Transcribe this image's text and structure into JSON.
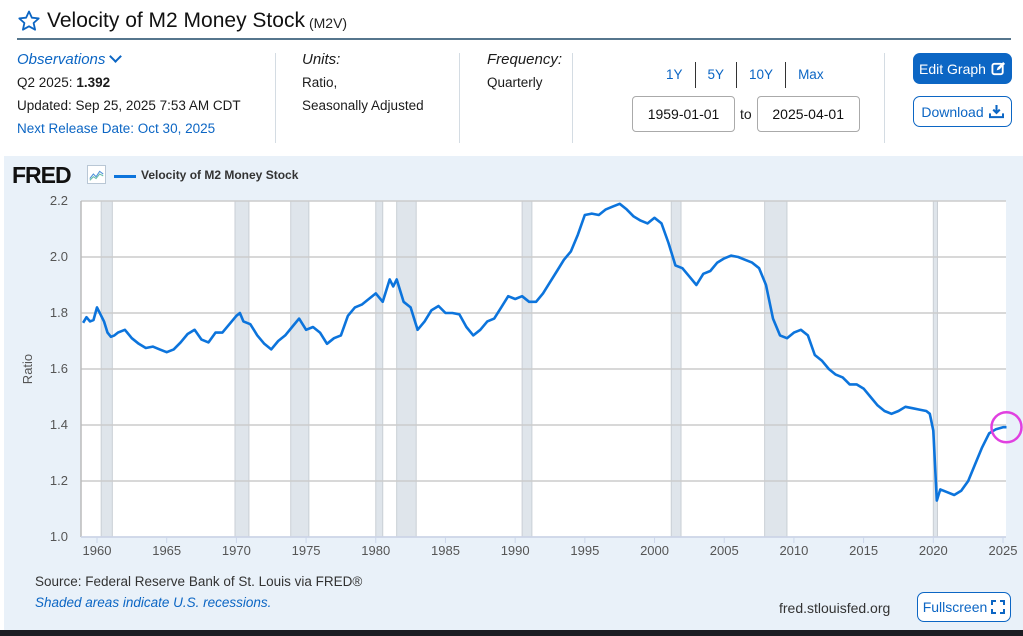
{
  "header": {
    "title": "Velocity of M2 Money Stock",
    "code": "(M2V)"
  },
  "observations": {
    "label": "Observations",
    "latest_period": "Q2 2025:",
    "latest_value": "1.392",
    "updated": "Updated: Sep 25, 2025 7:53 AM CDT",
    "next_release": "Next Release Date: Oct 30, 2025"
  },
  "units": {
    "label": "Units:",
    "line1": "Ratio,",
    "line2": "Seasonally Adjusted"
  },
  "frequency": {
    "label": "Frequency:",
    "value": "Quarterly"
  },
  "range_buttons": [
    "1Y",
    "5Y",
    "10Y",
    "Max"
  ],
  "date_range": {
    "start": "1959-01-01",
    "to": "to",
    "end": "2025-04-01"
  },
  "buttons": {
    "edit_graph": "Edit Graph",
    "download": "Download",
    "fullscreen": "Fullscreen"
  },
  "chart_panel": {
    "logo": "FRED",
    "legend_label": "Velocity of M2 Money Stock",
    "source": "Source: Federal Reserve Bank of St. Louis via FRED®",
    "shaded_note": "Shaded areas indicate U.S. recessions.",
    "site": "fred.stlouisfed.org"
  },
  "colors": {
    "line": "#0c74dc",
    "accent": "#0c66c4",
    "recession": "#dfe5eb",
    "grid": "#cccccc"
  },
  "chart_data": {
    "type": "line",
    "title": "Velocity of M2 Money Stock",
    "xlabel": "",
    "ylabel": "Ratio",
    "ylim": [
      1.0,
      2.2
    ],
    "xlim": [
      1959.0,
      2025.3
    ],
    "yticks": [
      "1.0",
      "1.2",
      "1.4",
      "1.6",
      "1.8",
      "2.0",
      "2.2"
    ],
    "xticks": [
      "1960",
      "1965",
      "1970",
      "1975",
      "1980",
      "1985",
      "1990",
      "1995",
      "2000",
      "2005",
      "2010",
      "2015",
      "2020",
      "2025"
    ],
    "grid": true,
    "legend": "top-left",
    "recessions": [
      [
        1960.3,
        1961.1
      ],
      [
        1969.9,
        1970.9
      ],
      [
        1973.9,
        1975.2
      ],
      [
        1980.0,
        1980.5
      ],
      [
        1981.5,
        1982.9
      ],
      [
        1990.5,
        1991.2
      ],
      [
        2001.2,
        2001.9
      ],
      [
        2007.9,
        2009.5
      ],
      [
        2020.0,
        2020.3
      ]
    ],
    "series": [
      {
        "name": "Velocity of M2 Money Stock",
        "x": [
          1959.0,
          1959.25,
          1959.5,
          1959.75,
          1960.0,
          1960.25,
          1960.5,
          1960.75,
          1961.0,
          1961.25,
          1961.5,
          1962.0,
          1962.5,
          1963.0,
          1963.5,
          1964.0,
          1964.5,
          1965.0,
          1965.5,
          1966.0,
          1966.5,
          1967.0,
          1967.5,
          1968.0,
          1968.5,
          1969.0,
          1969.5,
          1970.0,
          1970.25,
          1970.5,
          1971.0,
          1971.5,
          1972.0,
          1972.5,
          1973.0,
          1973.5,
          1974.0,
          1974.5,
          1975.0,
          1975.5,
          1976.0,
          1976.5,
          1977.0,
          1977.5,
          1978.0,
          1978.5,
          1979.0,
          1979.5,
          1980.0,
          1980.5,
          1981.0,
          1981.25,
          1981.5,
          1982.0,
          1982.5,
          1983.0,
          1983.5,
          1984.0,
          1984.5,
          1985.0,
          1985.5,
          1986.0,
          1986.5,
          1987.0,
          1987.5,
          1988.0,
          1988.5,
          1989.0,
          1989.5,
          1990.0,
          1990.5,
          1991.0,
          1991.5,
          1992.0,
          1992.5,
          1993.0,
          1993.5,
          1994.0,
          1994.5,
          1995.0,
          1995.5,
          1996.0,
          1996.5,
          1997.0,
          1997.5,
          1998.0,
          1998.5,
          1999.0,
          1999.5,
          2000.0,
          2000.5,
          2001.0,
          2001.5,
          2002.0,
          2002.5,
          2003.0,
          2003.5,
          2004.0,
          2004.5,
          2005.0,
          2005.5,
          2006.0,
          2006.5,
          2007.0,
          2007.5,
          2008.0,
          2008.5,
          2009.0,
          2009.5,
          2010.0,
          2010.5,
          2011.0,
          2011.5,
          2012.0,
          2012.5,
          2013.0,
          2013.5,
          2014.0,
          2014.5,
          2015.0,
          2015.5,
          2016.0,
          2016.5,
          2017.0,
          2017.5,
          2018.0,
          2018.5,
          2019.0,
          2019.5,
          2019.75,
          2020.0,
          2020.25,
          2020.5,
          2021.0,
          2021.5,
          2022.0,
          2022.5,
          2023.0,
          2023.5,
          2024.0,
          2024.5,
          2025.0,
          2025.25
        ],
        "values": [
          1.765,
          1.785,
          1.77,
          1.775,
          1.82,
          1.795,
          1.77,
          1.73,
          1.715,
          1.72,
          1.73,
          1.74,
          1.71,
          1.69,
          1.675,
          1.68,
          1.67,
          1.66,
          1.67,
          1.695,
          1.725,
          1.74,
          1.705,
          1.695,
          1.73,
          1.73,
          1.76,
          1.79,
          1.8,
          1.77,
          1.76,
          1.72,
          1.69,
          1.67,
          1.7,
          1.72,
          1.75,
          1.78,
          1.74,
          1.75,
          1.73,
          1.69,
          1.71,
          1.72,
          1.79,
          1.82,
          1.83,
          1.85,
          1.87,
          1.84,
          1.92,
          1.895,
          1.92,
          1.84,
          1.82,
          1.74,
          1.77,
          1.81,
          1.825,
          1.8,
          1.8,
          1.795,
          1.75,
          1.72,
          1.74,
          1.77,
          1.78,
          1.82,
          1.86,
          1.85,
          1.86,
          1.84,
          1.84,
          1.87,
          1.91,
          1.95,
          1.99,
          2.02,
          2.08,
          2.15,
          2.155,
          2.15,
          2.17,
          2.18,
          2.19,
          2.17,
          2.145,
          2.13,
          2.12,
          2.14,
          2.12,
          2.05,
          1.97,
          1.96,
          1.93,
          1.9,
          1.94,
          1.95,
          1.98,
          1.995,
          2.005,
          2.0,
          1.99,
          1.98,
          1.96,
          1.9,
          1.78,
          1.72,
          1.71,
          1.73,
          1.74,
          1.72,
          1.65,
          1.63,
          1.6,
          1.58,
          1.57,
          1.545,
          1.545,
          1.53,
          1.5,
          1.47,
          1.45,
          1.44,
          1.45,
          1.465,
          1.46,
          1.455,
          1.45,
          1.44,
          1.38,
          1.13,
          1.17,
          1.16,
          1.15,
          1.165,
          1.2,
          1.26,
          1.32,
          1.37,
          1.385,
          1.392,
          1.392
        ]
      }
    ]
  }
}
